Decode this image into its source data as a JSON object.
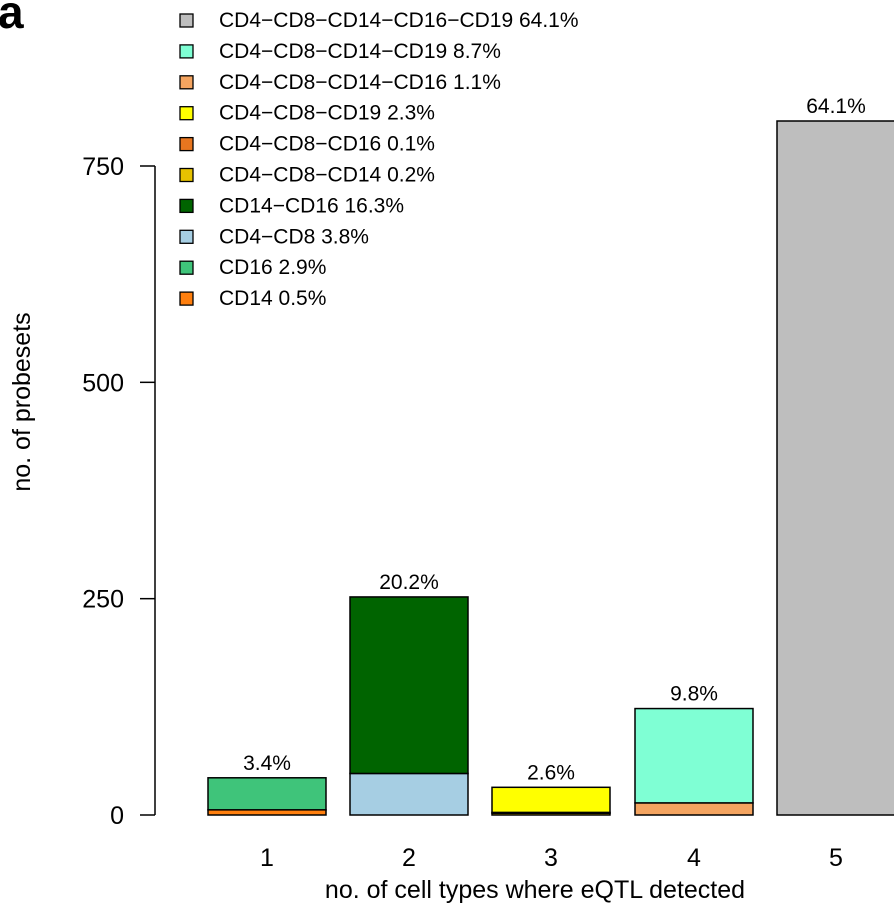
{
  "panel_label": "a",
  "chart_data": {
    "type": "bar",
    "stacked": true,
    "xlabel": "no. of cell types where eQTL detected",
    "ylabel": "no. of probesets",
    "categories": [
      "1",
      "2",
      "3",
      "4",
      "5"
    ],
    "ylim": [
      0,
      800
    ],
    "yticks": [
      0,
      250,
      500,
      750
    ],
    "bar_labels": [
      "3.4%",
      "20.2%",
      "2.6%",
      "9.8%",
      "64.1%"
    ],
    "legend_position": "top-left",
    "legend": [
      {
        "label": "CD4−CD8−CD14−CD16−CD19 64.1%",
        "color": "#bebebe"
      },
      {
        "label": "CD4−CD8−CD14−CD19 8.7%",
        "color": "#7fffd4"
      },
      {
        "label": "CD4−CD8−CD14−CD16 1.1%",
        "color": "#f4a460"
      },
      {
        "label": "CD4−CD8−CD19 2.3%",
        "color": "#ffff00"
      },
      {
        "label": "CD4−CD8−CD16 0.1%",
        "color": "#e8761f"
      },
      {
        "label": "CD4−CD8−CD14 0.2%",
        "color": "#e6c200"
      },
      {
        "label": "CD14−CD16 16.3%",
        "color": "#006400"
      },
      {
        "label": "CD4−CD8 3.8%",
        "color": "#a6cee3"
      },
      {
        "label": "CD16 2.9%",
        "color": "#3fc47a"
      },
      {
        "label": "CD14 0.5%",
        "color": "#ff7f0e"
      }
    ],
    "bars": [
      {
        "category": "1",
        "segments": [
          {
            "series": "CD14 0.5%",
            "value": 6,
            "color": "#ff7f0e"
          },
          {
            "series": "CD16 2.9%",
            "value": 37,
            "color": "#3fc47a"
          }
        ]
      },
      {
        "category": "2",
        "segments": [
          {
            "series": "CD4−CD8 3.8%",
            "value": 48,
            "color": "#a6cee3"
          },
          {
            "series": "CD14−CD16 16.3%",
            "value": 204,
            "color": "#006400"
          }
        ]
      },
      {
        "category": "3",
        "segments": [
          {
            "series": "CD4−CD8−CD14 0.2%",
            "value": 2,
            "color": "#e6c200"
          },
          {
            "series": "CD4−CD8−CD16 0.1%",
            "value": 1,
            "color": "#e8761f"
          },
          {
            "series": "CD4−CD8−CD19 2.3%",
            "value": 29,
            "color": "#ffff00"
          }
        ]
      },
      {
        "category": "4",
        "segments": [
          {
            "series": "CD4−CD8−CD14−CD16 1.1%",
            "value": 14,
            "color": "#f4a460"
          },
          {
            "series": "CD4−CD8−CD14−CD19 8.7%",
            "value": 109,
            "color": "#7fffd4"
          }
        ]
      },
      {
        "category": "5",
        "segments": [
          {
            "series": "CD4−CD8−CD14−CD16−CD19 64.1%",
            "value": 802,
            "color": "#bebebe"
          }
        ]
      }
    ]
  }
}
